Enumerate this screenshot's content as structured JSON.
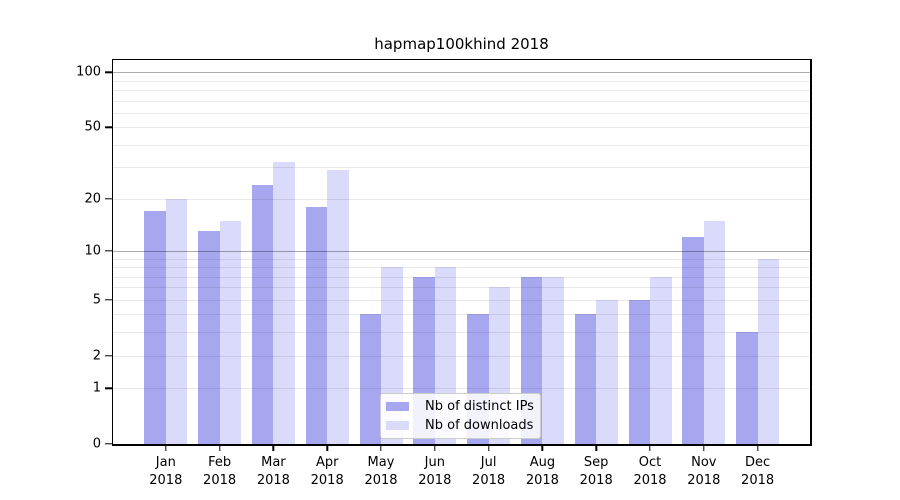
{
  "title": "hapmap100khind 2018",
  "chart_data": {
    "type": "bar",
    "title": "hapmap100khind 2018",
    "categories": [
      "Jan",
      "Feb",
      "Mar",
      "Apr",
      "May",
      "Jun",
      "Jul",
      "Aug",
      "Sep",
      "Oct",
      "Nov",
      "Dec"
    ],
    "year": "2018",
    "series": [
      {
        "name": "Nb of distinct IPs",
        "color": "#a7a7f0",
        "values": [
          17,
          13,
          24,
          18,
          4,
          7,
          4,
          7,
          4,
          5,
          12,
          3
        ]
      },
      {
        "name": "Nb of downloads",
        "color": "#dadafa",
        "values": [
          20,
          15,
          32,
          29,
          8,
          8,
          6,
          7,
          5,
          7,
          15,
          9
        ]
      }
    ],
    "xlabel": "",
    "ylabel": "",
    "yscale": "log1p",
    "ylim": [
      0,
      116
    ],
    "yticks": [
      0,
      1,
      2,
      5,
      10,
      20,
      50,
      100
    ],
    "gridlines": {
      "major": [
        10,
        100
      ],
      "minor": [
        1,
        2,
        3,
        4,
        5,
        6,
        7,
        8,
        9,
        20,
        30,
        40,
        50,
        60,
        70,
        80,
        90
      ]
    },
    "grid_on": true,
    "legend": {
      "position": "lower center",
      "items": [
        "Nb of distinct IPs",
        "Nb of downloads"
      ]
    }
  },
  "colors": {
    "bar_distinct_ips": "#a7a7f0",
    "bar_downloads": "#dadafa",
    "major_grid": "#adadad",
    "minor_grid": "#e8e8e8",
    "axis": "#000000",
    "legend_border": "#cccccc"
  }
}
